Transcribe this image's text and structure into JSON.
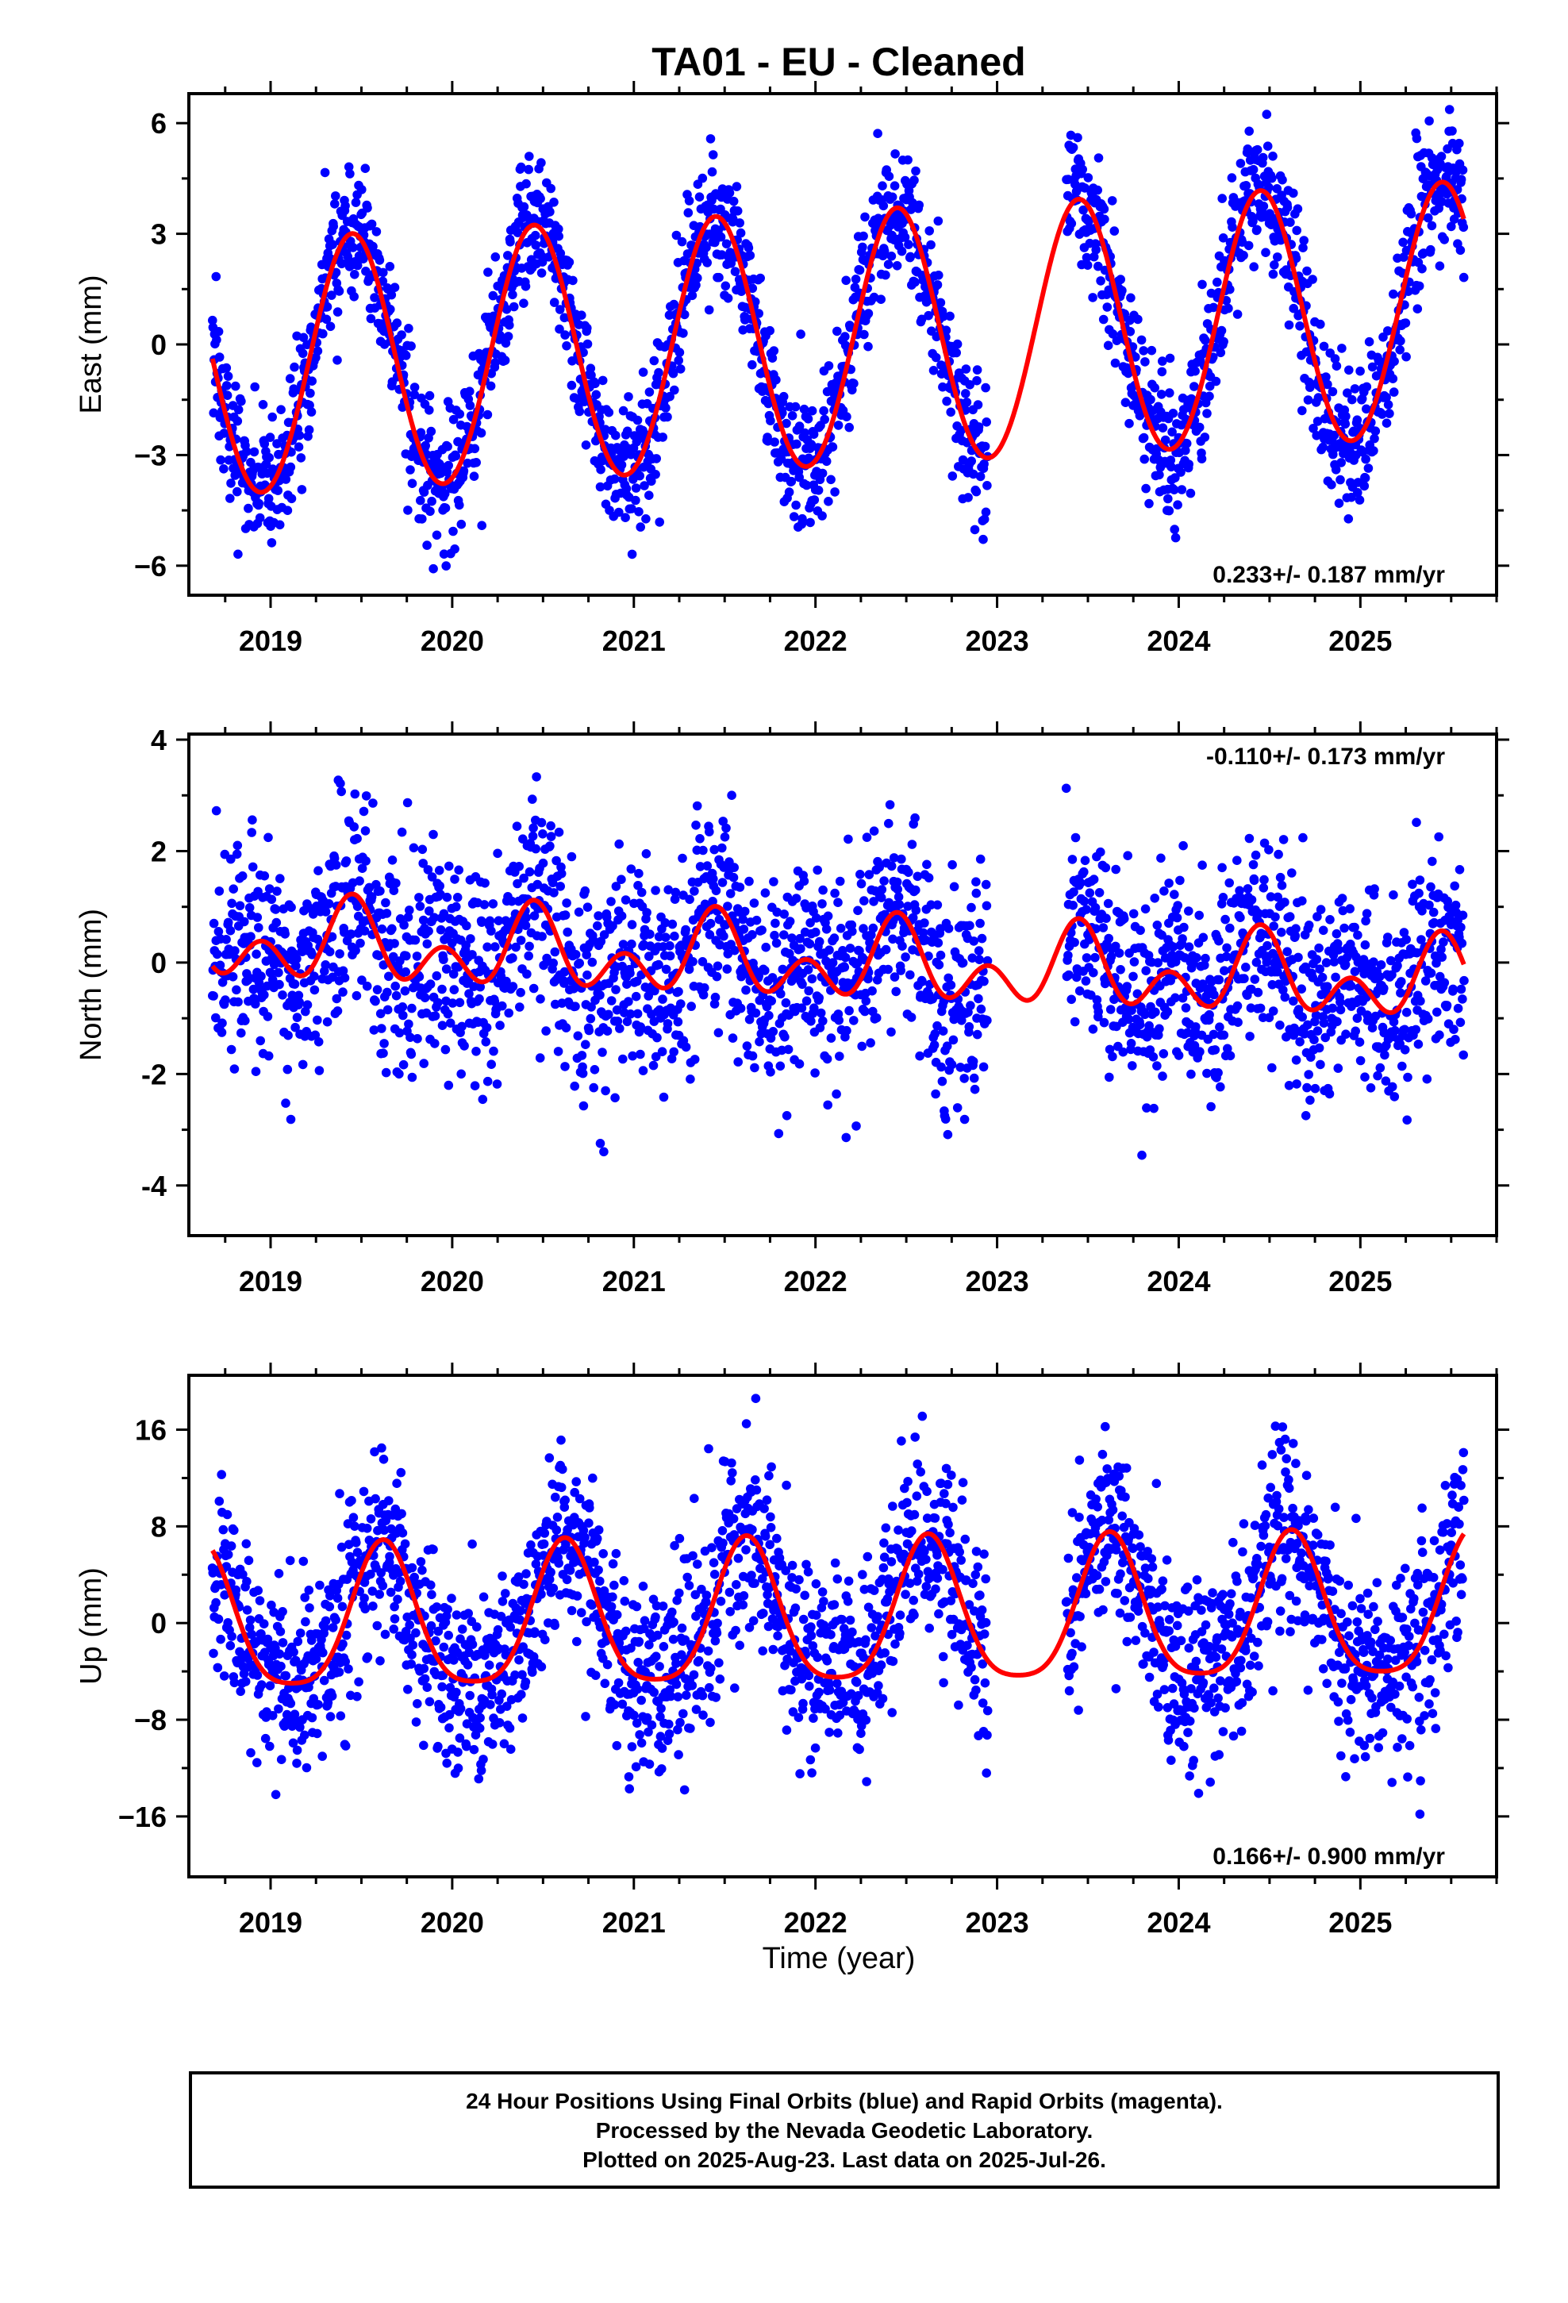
{
  "title": "TA01  - EU - Cleaned",
  "footer": {
    "line1": "24 Hour Positions Using Final Orbits (blue) and Rapid Orbits (magenta).",
    "line2": "Processed by the Nevada Geodetic Laboratory.",
    "line3": "Plotted on 2025-Aug-23. Last data on 2025-Jul-26."
  },
  "colors": {
    "points": "#0000ff",
    "fit": "#ff0000",
    "axes": "#000000"
  },
  "chart_data": [
    {
      "type": "scatter",
      "component": "east",
      "ylabel": "East (mm)",
      "xlabel": "",
      "xlim": [
        2018.55,
        2025.75
      ],
      "ylim": [
        -6.8,
        6.8
      ],
      "yticks": [
        -6,
        -3,
        0,
        3,
        6
      ],
      "ytick_labels": [
        "−6",
        "−3",
        "0",
        "3",
        "6"
      ],
      "xticks": [
        2019,
        2020,
        2021,
        2022,
        2023,
        2024,
        2025
      ],
      "xtick_labels": [
        "2019",
        "2020",
        "2021",
        "2022",
        "2023",
        "2024",
        "2025"
      ],
      "rate_label": "0.233+/- 0.187 mm/yr",
      "rate_position": "bottom-right",
      "data_start": 2018.68,
      "data_end": 2025.57,
      "gaps": [
        [
          2022.95,
          2023.38
        ]
      ],
      "fit": {
        "offset": 0.05,
        "rate": 0.233,
        "annual_amp": 3.45,
        "annual_peak": 2019.45,
        "semiannual_amp": 0.1,
        "semiannual_peak": 2019.45
      },
      "scatter_sd": 0.95,
      "num_points": 2450,
      "series": [
        {
          "kind": "points",
          "color": "#0000ff"
        },
        {
          "kind": "fit",
          "color": "#ff0000"
        }
      ]
    },
    {
      "type": "scatter",
      "component": "north",
      "ylabel": "North (mm)",
      "xlabel": "",
      "xlim": [
        2018.55,
        2025.75
      ],
      "ylim": [
        -4.9,
        4.1
      ],
      "yticks": [
        -4,
        -2,
        0,
        2,
        4
      ],
      "ytick_labels": [
        "-4",
        "-2",
        "0",
        "2",
        "4"
      ],
      "xticks": [
        2019,
        2020,
        2021,
        2022,
        2023,
        2024,
        2025
      ],
      "xtick_labels": [
        "2019",
        "2020",
        "2021",
        "2022",
        "2023",
        "2024",
        "2025"
      ],
      "rate_label": "-0.110+/- 0.173 mm/yr",
      "rate_position": "top-right",
      "data_start": 2018.68,
      "data_end": 2025.57,
      "gaps": [
        [
          2022.95,
          2023.38
        ]
      ],
      "fit": {
        "offset": 0.0,
        "rate": -0.11,
        "annual_amp": 0.45,
        "annual_peak": 2019.45,
        "semiannual_amp": 0.5,
        "semiannual_peak": 2019.45
      },
      "scatter_sd": 0.95,
      "num_points": 2450,
      "series": [
        {
          "kind": "points",
          "color": "#0000ff"
        },
        {
          "kind": "fit",
          "color": "#ff0000"
        }
      ]
    },
    {
      "type": "scatter",
      "component": "up",
      "ylabel": "Up (mm)",
      "xlabel": "Time (year)",
      "xlim": [
        2018.55,
        2025.75
      ],
      "ylim": [
        -21,
        20.5
      ],
      "yticks": [
        -16,
        -8,
        0,
        8,
        16
      ],
      "ytick_labels": [
        "−16",
        "−8",
        "0",
        "8",
        "16"
      ],
      "xticks": [
        2019,
        2020,
        2021,
        2022,
        2023,
        2024,
        2025
      ],
      "xtick_labels": [
        "2019",
        "2020",
        "2021",
        "2022",
        "2023",
        "2024",
        "2025"
      ],
      "rate_label": "0.166+/- 0.900 mm/yr",
      "rate_position": "bottom-right",
      "data_start": 2018.68,
      "data_end": 2025.57,
      "gaps": [
        [
          2022.95,
          2023.38
        ]
      ],
      "fit": {
        "offset": 0.2,
        "rate": 0.166,
        "annual_amp": 5.9,
        "annual_peak": 2019.62,
        "semiannual_amp": 1.2,
        "semiannual_peak": 2019.62
      },
      "scatter_sd": 4.0,
      "num_points": 2450,
      "series": [
        {
          "kind": "points",
          "color": "#0000ff"
        },
        {
          "kind": "fit",
          "color": "#ff0000"
        }
      ]
    }
  ]
}
